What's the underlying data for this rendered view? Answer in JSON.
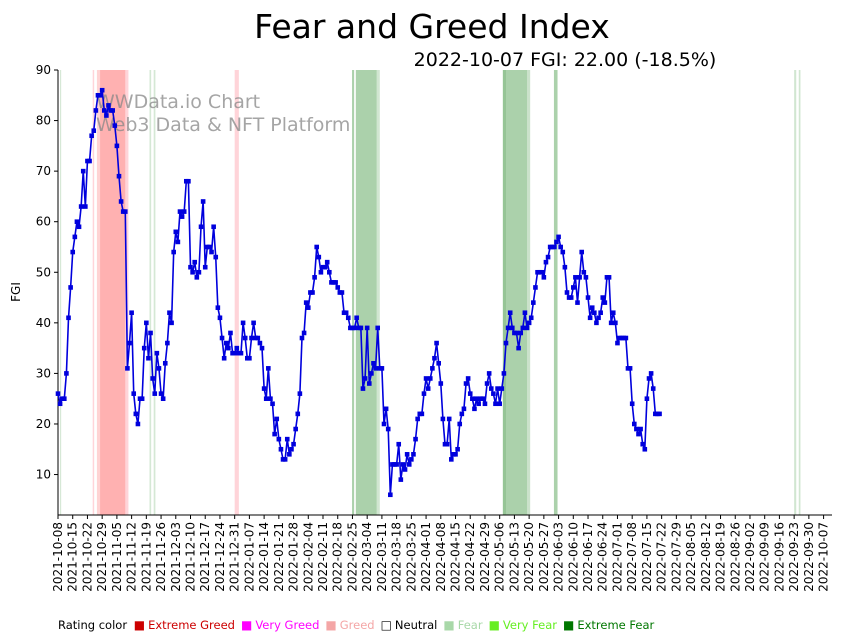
{
  "chart_data": {
    "type": "line",
    "title": "Fear and Greed Index",
    "subtitle": "2022-10-07 FGI: 22.00 (-18.5%)",
    "watermark_line1": "WWData.io Chart",
    "watermark_line2": "Web3 Data & NFT Platform",
    "ylabel": "FGI",
    "xlabel": "",
    "ylim": [
      2,
      90
    ],
    "yticks": [
      10,
      20,
      30,
      40,
      50,
      60,
      70,
      80,
      90
    ],
    "x_start": "2021-10-08",
    "x_end": "2022-10-11",
    "xticks": [
      "2021-10-08",
      "2021-10-15",
      "2021-10-22",
      "2021-10-29",
      "2021-11-05",
      "2021-11-12",
      "2021-11-19",
      "2021-11-26",
      "2021-12-03",
      "2021-12-10",
      "2021-12-17",
      "2021-12-24",
      "2021-12-31",
      "2022-01-07",
      "2022-01-14",
      "2022-01-21",
      "2022-01-28",
      "2022-02-04",
      "2022-02-11",
      "2022-02-18",
      "2022-02-25",
      "2022-03-04",
      "2022-03-11",
      "2022-03-18",
      "2022-03-25",
      "2022-04-01",
      "2022-04-08",
      "2022-04-15",
      "2022-04-22",
      "2022-04-29",
      "2022-05-06",
      "2022-05-13",
      "2022-05-20",
      "2022-05-27",
      "2022-06-03",
      "2022-06-10",
      "2022-06-17",
      "2022-06-24",
      "2022-07-01",
      "2022-07-08",
      "2022-07-15",
      "2022-07-22",
      "2022-07-29",
      "2022-08-05",
      "2022-08-12",
      "2022-08-19",
      "2022-08-26",
      "2022-09-02",
      "2022-09-09",
      "2022-09-16",
      "2022-09-23",
      "2022-09-30",
      "2022-10-07"
    ],
    "series": [
      {
        "name": "FGI",
        "color": "#0000dd",
        "values": [
          26,
          24,
          25,
          25,
          30,
          41,
          47,
          54,
          57,
          60,
          59,
          63,
          70,
          63,
          72,
          72,
          77,
          78,
          82,
          85,
          85,
          86,
          82,
          81,
          83,
          82,
          82,
          79,
          75,
          69,
          64,
          62,
          62,
          31,
          36,
          42,
          26,
          22,
          20,
          25,
          25,
          35,
          40,
          33,
          38,
          29,
          26,
          34,
          31,
          26,
          25,
          32,
          36,
          42,
          40,
          54,
          58,
          56,
          62,
          61,
          62,
          68,
          68,
          51,
          50,
          52,
          49,
          50,
          59,
          64,
          51,
          55,
          55,
          54,
          59,
          53,
          43,
          41,
          37,
          33,
          36,
          35,
          38,
          34,
          34,
          35,
          34,
          34,
          40,
          37,
          33,
          33,
          37,
          40,
          37,
          37,
          36,
          35,
          27,
          25,
          31,
          25,
          24,
          18,
          21,
          17,
          15,
          13,
          13,
          17,
          14,
          15,
          16,
          19,
          22,
          26,
          37,
          38,
          44,
          43,
          46,
          46,
          49,
          55,
          53,
          50,
          51,
          51,
          52,
          50,
          48,
          48,
          48,
          47,
          46,
          46,
          42,
          42,
          41,
          39,
          39,
          39,
          41,
          39,
          39,
          27,
          29,
          39,
          28,
          30,
          32,
          31,
          39,
          31,
          31,
          20,
          23,
          19,
          6,
          12,
          12,
          12,
          16,
          9,
          12,
          11,
          14,
          12,
          13,
          14,
          17,
          21,
          22,
          22,
          26,
          29,
          27,
          29,
          31,
          33,
          36,
          32,
          28,
          21,
          16,
          16,
          21,
          13,
          14,
          14,
          15,
          20,
          22,
          23,
          28,
          29,
          26,
          25,
          23,
          25,
          24,
          25,
          25,
          24,
          28,
          30,
          27,
          26,
          24,
          27,
          24,
          27,
          30,
          36,
          39,
          42,
          39,
          38,
          38,
          35,
          38,
          39,
          42,
          39,
          40,
          41,
          44,
          47,
          50,
          50,
          50,
          49,
          52,
          53,
          55,
          55,
          55,
          56,
          57,
          55,
          54,
          51,
          46,
          45,
          45,
          47,
          49,
          44,
          49,
          54,
          50,
          49,
          45,
          41,
          43,
          42,
          40,
          41,
          42,
          45,
          44,
          49,
          49,
          40,
          42,
          40,
          36,
          37,
          37,
          37,
          37,
          31,
          31,
          24,
          20,
          19,
          18,
          19,
          16,
          15,
          25,
          29,
          30,
          27,
          22,
          22,
          22
        ]
      }
    ],
    "bands": [
      {
        "start": 1,
        "end": 1.5,
        "color": "#2e8b2e",
        "alpha": 0.22
      },
      {
        "start": 16.5,
        "end": 17.2,
        "color": "#ff7080",
        "alpha": 0.3
      },
      {
        "start": 18.5,
        "end": 20,
        "color": "#ff8080",
        "alpha": 0.35
      },
      {
        "start": 20,
        "end": 32,
        "color": "#ff2020",
        "alpha": 0.35
      },
      {
        "start": 32,
        "end": 33.5,
        "color": "#ff7080",
        "alpha": 0.3
      },
      {
        "start": 43.5,
        "end": 44.3,
        "color": "#2e8b2e",
        "alpha": 0.2
      },
      {
        "start": 45.5,
        "end": 46.3,
        "color": "#2e8b2e",
        "alpha": 0.2
      },
      {
        "start": 84,
        "end": 86,
        "color": "#ff7080",
        "alpha": 0.3
      },
      {
        "start": 139.8,
        "end": 140.8,
        "color": "#2e8b2e",
        "alpha": 0.4
      },
      {
        "start": 141.6,
        "end": 151.5,
        "color": "#2e8b2e",
        "alpha": 0.4
      },
      {
        "start": 151.5,
        "end": 153,
        "color": "#2e8b2e",
        "alpha": 0.22
      },
      {
        "start": 211.5,
        "end": 213,
        "color": "#2e8b2e",
        "alpha": 0.5
      },
      {
        "start": 213,
        "end": 223,
        "color": "#2e8b2e",
        "alpha": 0.4
      },
      {
        "start": 223,
        "end": 224.5,
        "color": "#2e8b2e",
        "alpha": 0.25
      },
      {
        "start": 235.8,
        "end": 237.5,
        "color": "#2e8b2e",
        "alpha": 0.4
      },
      {
        "start": 350,
        "end": 351,
        "color": "#2e8b2e",
        "alpha": 0.22
      },
      {
        "start": 352.2,
        "end": 353,
        "color": "#2e8b2e",
        "alpha": 0.22
      }
    ]
  },
  "legend": {
    "title": "Rating color",
    "items": [
      {
        "label": "Extreme Greed",
        "color": "#cc0000",
        "swatch": "■"
      },
      {
        "label": "Very Greed",
        "color": "#ff00ff",
        "swatch": "■"
      },
      {
        "label": "Greed",
        "color": "#f4a6a6",
        "swatch": "■"
      },
      {
        "label": "Neutral",
        "color": "#000000",
        "swatch": "□"
      },
      {
        "label": "Fear",
        "color": "#a8d8a8",
        "swatch": "■"
      },
      {
        "label": "Very Fear",
        "color": "#66ee22",
        "swatch": "■"
      },
      {
        "label": "Extreme Fear",
        "color": "#007700",
        "swatch": "■"
      }
    ]
  }
}
